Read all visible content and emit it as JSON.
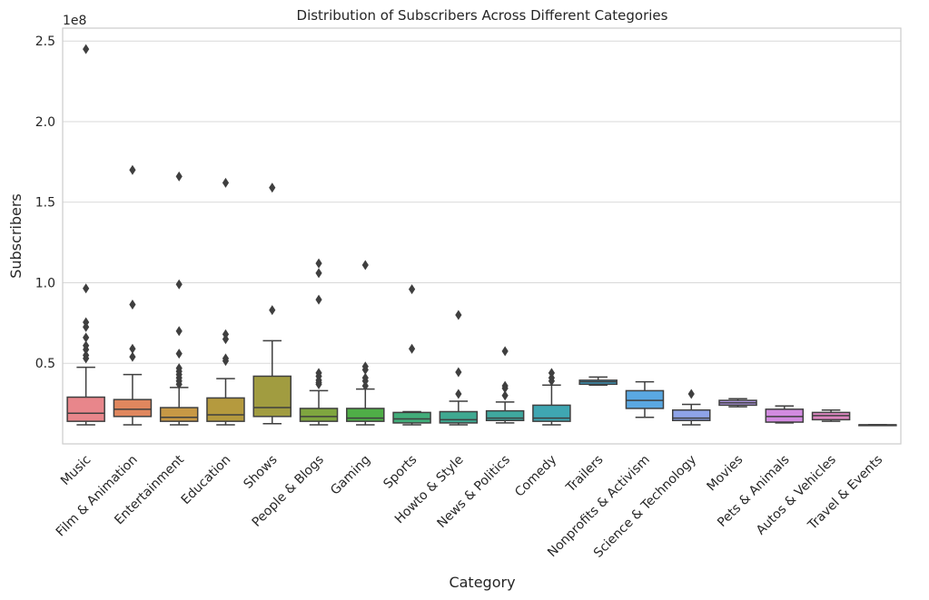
{
  "chart_data": {
    "type": "box",
    "title": "Distribution of Subscribers Across Different Categories",
    "xlabel": "Category",
    "ylabel": "Subscribers",
    "offset_label": "1e8",
    "ylim": [
      0,
      2.58
    ],
    "yticks": [
      0.5,
      1.0,
      1.5,
      2.0,
      2.5
    ],
    "ytick_labels": [
      "0.5",
      "1.0",
      "1.5",
      "2.0",
      "2.5"
    ],
    "grid": true,
    "legend": "none",
    "categories": [
      "Music",
      "Film & Animation",
      "Entertainment",
      "Education",
      "Shows",
      "People & Blogs",
      "Gaming",
      "Sports",
      "Howto & Style",
      "News & Politics",
      "Comedy",
      "Trailers",
      "Nonprofits & Activism",
      "Science & Technology",
      "Movies",
      "Pets & Animals",
      "Autos & Vehicles",
      "Travel & Events"
    ],
    "colors": [
      "#e8868b",
      "#e0875e",
      "#c79845",
      "#b59a3e",
      "#a19c40",
      "#7fa63f",
      "#4fae47",
      "#42ad7a",
      "#3fa991",
      "#3fa89f",
      "#3fa6b2",
      "#3ba3cd",
      "#5aa8e2",
      "#8ea3e8",
      "#b098e6",
      "#d28be0",
      "#dc86c0",
      "#e284a4"
    ],
    "boxes": [
      {
        "whislo": 0.118,
        "q1": 0.14,
        "med": 0.19,
        "q3": 0.29,
        "whishi": 0.475,
        "fliers": [
          2.45,
          0.965,
          0.755,
          0.725,
          0.66,
          0.61,
          0.585,
          0.55,
          0.53
        ]
      },
      {
        "whislo": 0.118,
        "q1": 0.17,
        "med": 0.215,
        "q3": 0.275,
        "whishi": 0.43,
        "fliers": [
          1.7,
          0.865,
          0.59,
          0.54
        ]
      },
      {
        "whislo": 0.118,
        "q1": 0.14,
        "med": 0.165,
        "q3": 0.225,
        "whishi": 0.35,
        "fliers": [
          1.66,
          0.99,
          0.7,
          0.56,
          0.47,
          0.45,
          0.43,
          0.41,
          0.39,
          0.37
        ]
      },
      {
        "whislo": 0.118,
        "q1": 0.14,
        "med": 0.18,
        "q3": 0.285,
        "whishi": 0.405,
        "fliers": [
          1.62,
          0.68,
          0.65,
          0.53,
          0.515
        ]
      },
      {
        "whislo": 0.125,
        "q1": 0.17,
        "med": 0.225,
        "q3": 0.42,
        "whishi": 0.64,
        "fliers": [
          1.59,
          0.83
        ]
      },
      {
        "whislo": 0.118,
        "q1": 0.14,
        "med": 0.17,
        "q3": 0.22,
        "whishi": 0.33,
        "fliers": [
          1.12,
          1.06,
          0.895,
          0.44,
          0.42,
          0.395,
          0.38,
          0.37
        ]
      },
      {
        "whislo": 0.118,
        "q1": 0.14,
        "med": 0.16,
        "q3": 0.22,
        "whishi": 0.34,
        "fliers": [
          1.11,
          0.48,
          0.46,
          0.41,
          0.39,
          0.36
        ]
      },
      {
        "whislo": 0.118,
        "q1": 0.13,
        "med": 0.155,
        "q3": 0.195,
        "whishi": 0.2,
        "fliers": [
          0.96,
          0.59
        ]
      },
      {
        "whislo": 0.118,
        "q1": 0.13,
        "med": 0.15,
        "q3": 0.2,
        "whishi": 0.265,
        "fliers": [
          0.8,
          0.445,
          0.31
        ]
      },
      {
        "whislo": 0.13,
        "q1": 0.145,
        "med": 0.16,
        "q3": 0.205,
        "whishi": 0.26,
        "fliers": [
          0.575,
          0.36,
          0.345,
          0.3
        ]
      },
      {
        "whislo": 0.118,
        "q1": 0.14,
        "med": 0.16,
        "q3": 0.24,
        "whishi": 0.365,
        "fliers": [
          0.44,
          0.41,
          0.39
        ]
      },
      {
        "whislo": 0.365,
        "q1": 0.37,
        "med": 0.385,
        "q3": 0.395,
        "whishi": 0.415,
        "fliers": []
      },
      {
        "whislo": 0.165,
        "q1": 0.22,
        "med": 0.27,
        "q3": 0.33,
        "whishi": 0.385,
        "fliers": []
      },
      {
        "whislo": 0.118,
        "q1": 0.145,
        "med": 0.16,
        "q3": 0.21,
        "whishi": 0.245,
        "fliers": [
          0.31
        ]
      },
      {
        "whislo": 0.23,
        "q1": 0.24,
        "med": 0.255,
        "q3": 0.27,
        "whishi": 0.28,
        "fliers": []
      },
      {
        "whislo": 0.13,
        "q1": 0.135,
        "med": 0.17,
        "q3": 0.215,
        "whishi": 0.235,
        "fliers": []
      },
      {
        "whislo": 0.14,
        "q1": 0.15,
        "med": 0.175,
        "q3": 0.195,
        "whishi": 0.21,
        "fliers": []
      },
      {
        "whislo": 0.118,
        "q1": 0.118,
        "med": 0.118,
        "q3": 0.118,
        "whishi": 0.118,
        "fliers": []
      }
    ]
  }
}
